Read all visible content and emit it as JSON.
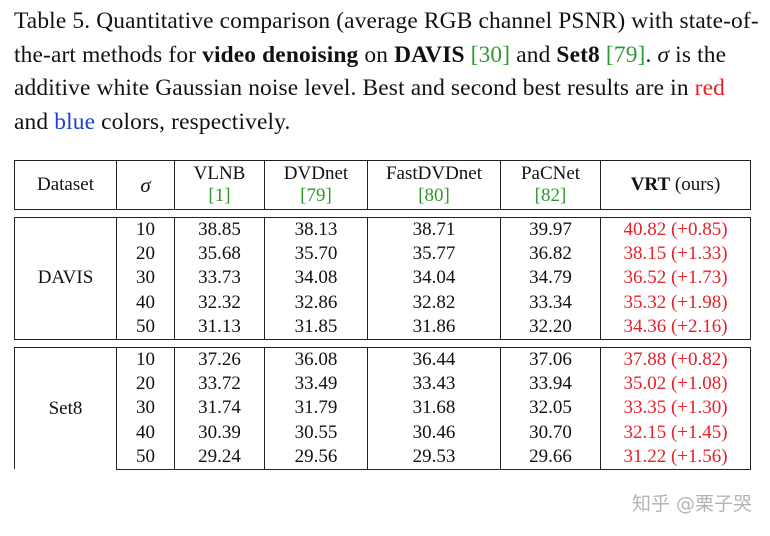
{
  "caption": {
    "p1": "Table 5. Quantitative comparison (average RGB channel PSNR) with state-of-the-art methods for ",
    "b1": "video denoising",
    "p2": " on ",
    "b2": "DAVIS",
    "c1": "[30]",
    "p3": " and ",
    "b3": "Set8",
    "c2": "[79]",
    "p4": ". ",
    "sigma": "σ",
    "p5": " is the additive white Gaussian noise level. Best and second best results are in ",
    "red_word": "red",
    "p6": " and ",
    "blue_word": "blue",
    "p7": " colors, respectively."
  },
  "colors": {
    "red": "#e8202a",
    "blue": "#1f3fd0",
    "citation_green": "#2e9a2e"
  },
  "table": {
    "headers": {
      "dataset": "Dataset",
      "sigma": "σ",
      "methods": [
        {
          "name": "VLNB",
          "cite": "[1]"
        },
        {
          "name": "DVDnet",
          "cite": "[79]"
        },
        {
          "name": "FastDVDnet",
          "cite": "[80]"
        },
        {
          "name": "PaCNet",
          "cite": "[82]"
        }
      ],
      "ours_name": "VRT",
      "ours_suffix": "(ours)"
    },
    "groups": [
      {
        "dataset": "DAVIS",
        "rows": [
          {
            "sigma": "10",
            "vals": [
              "38.85",
              "38.13",
              "38.71",
              "39.97"
            ],
            "ours": "40.82 (+0.85)"
          },
          {
            "sigma": "20",
            "vals": [
              "35.68",
              "35.70",
              "35.77",
              "36.82"
            ],
            "ours": "38.15 (+1.33)"
          },
          {
            "sigma": "30",
            "vals": [
              "33.73",
              "34.08",
              "34.04",
              "34.79"
            ],
            "ours": "36.52 (+1.73)"
          },
          {
            "sigma": "40",
            "vals": [
              "32.32",
              "32.86",
              "32.82",
              "33.34"
            ],
            "ours": "35.32 (+1.98)"
          },
          {
            "sigma": "50",
            "vals": [
              "31.13",
              "31.85",
              "31.86",
              "32.20"
            ],
            "ours": "34.36 (+2.16)"
          }
        ]
      },
      {
        "dataset": "Set8",
        "rows": [
          {
            "sigma": "10",
            "vals": [
              "37.26",
              "36.08",
              "36.44",
              "37.06"
            ],
            "ours": "37.88 (+0.82)"
          },
          {
            "sigma": "20",
            "vals": [
              "33.72",
              "33.49",
              "33.43",
              "33.94"
            ],
            "ours": "35.02 (+1.08)"
          },
          {
            "sigma": "30",
            "vals": [
              "31.74",
              "31.79",
              "31.68",
              "32.05"
            ],
            "ours": "33.35 (+1.30)"
          },
          {
            "sigma": "40",
            "vals": [
              "30.39",
              "30.55",
              "30.46",
              "30.70"
            ],
            "ours": "32.15 (+1.45)"
          },
          {
            "sigma": "50",
            "vals": [
              "29.24",
              "29.56",
              "29.53",
              "29.66"
            ],
            "ours": "31.22 (+1.56)"
          }
        ]
      }
    ]
  },
  "watermark": "知乎 @栗子哭"
}
